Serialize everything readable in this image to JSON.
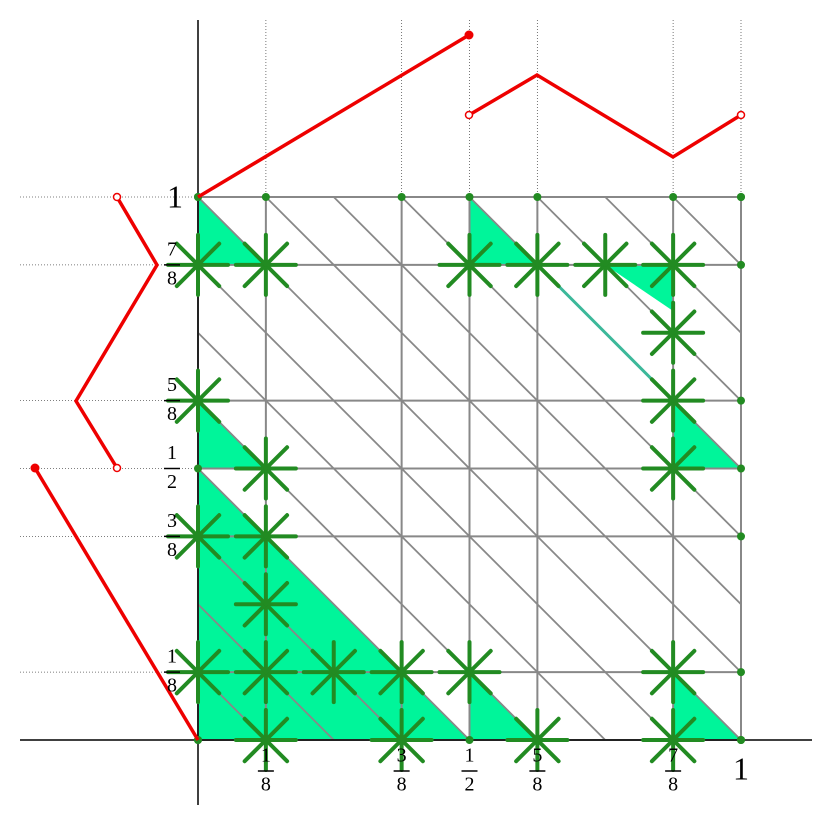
{
  "x_axis_labels": [
    {
      "numerator": "1",
      "denominator": "8"
    },
    {
      "numerator": "3",
      "denominator": "8"
    },
    {
      "numerator": "1",
      "denominator": "2"
    },
    {
      "numerator": "5",
      "denominator": "8"
    },
    {
      "numerator": "7",
      "denominator": "8"
    },
    {
      "whole": "1"
    }
  ],
  "y_axis_labels": [
    {
      "numerator": "1",
      "denominator": "8"
    },
    {
      "numerator": "3",
      "denominator": "8"
    },
    {
      "numerator": "1",
      "denominator": "2"
    },
    {
      "numerator": "5",
      "denominator": "8"
    },
    {
      "numerator": "7",
      "denominator": "8"
    },
    {
      "whole": "1"
    }
  ]
}
